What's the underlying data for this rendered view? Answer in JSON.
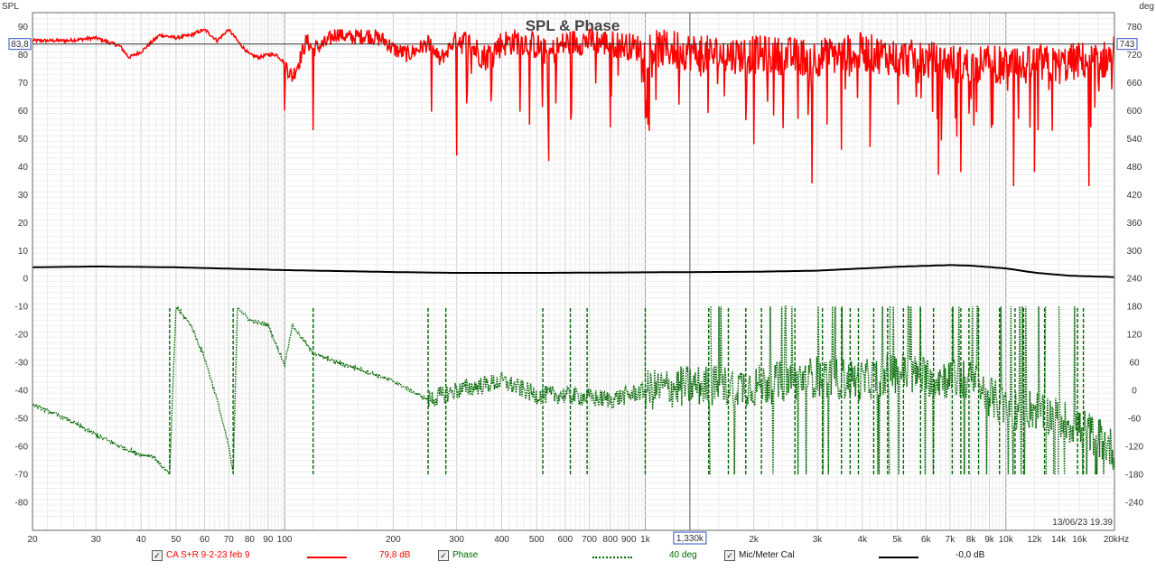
{
  "title": "SPL & Phase",
  "timestamp": "13/06/23 19.39",
  "left_axis": {
    "label": "SPL",
    "ticks": [
      "90",
      "80",
      "70",
      "60",
      "50",
      "40",
      "30",
      "20",
      "10",
      "0",
      "-10",
      "-20",
      "-30",
      "-40",
      "-50",
      "-60",
      "-70",
      "-80"
    ],
    "marker": "83,8"
  },
  "right_axis": {
    "label": "deg",
    "ticks": [
      "780",
      "720",
      "660",
      "600",
      "540",
      "480",
      "420",
      "360",
      "300",
      "240",
      "180",
      "120",
      "60",
      "0",
      "-60",
      "-120",
      "-180",
      "-240"
    ],
    "marker": "743"
  },
  "x_axis": {
    "ticks": [
      "20",
      "30",
      "40",
      "50",
      "60",
      "70",
      "80",
      "90",
      "100",
      "200",
      "300",
      "400",
      "500",
      "600",
      "700",
      "800",
      "900",
      "1k",
      "2k",
      "3k",
      "4k",
      "5k",
      "6k",
      "7k",
      "8k",
      "9k",
      "10k",
      "12k",
      "14k",
      "16k",
      "20kHz"
    ],
    "cursor": "1,330k"
  },
  "legend": [
    {
      "checked": true,
      "label": "CA S+R 9-2-23 feb 9",
      "value": "79,8 dB",
      "color": "#ff0000",
      "style": "solid"
    },
    {
      "checked": true,
      "label": "Phase",
      "value": "40 deg",
      "color": "#006600",
      "style": "dotted"
    },
    {
      "checked": true,
      "label": "Mic/Meter Cal",
      "value": "-0,0 dB",
      "color": "#000000",
      "style": "solid"
    }
  ],
  "chart_data": {
    "type": "line",
    "title": "SPL & Phase",
    "xscale": "log",
    "xlim": [
      20,
      20000
    ],
    "ylim": [
      -90,
      95
    ],
    "y2lim": [
      -300,
      810
    ],
    "grid": true,
    "series": [
      {
        "name": "CA S+R 9-2-23 feb 9",
        "axis": "left",
        "x": [
          20,
          25,
          30,
          35,
          37,
          40,
          45,
          50,
          55,
          60,
          65,
          70,
          72,
          75,
          80,
          85,
          90,
          95,
          100,
          105,
          110,
          115,
          120,
          130,
          140,
          150,
          170,
          190,
          200,
          220,
          250,
          270,
          300,
          330,
          360,
          400,
          450,
          500,
          540,
          600,
          700,
          800,
          900,
          1000,
          1200,
          1500,
          2000,
          3000,
          4000,
          5000,
          6000,
          7000,
          8000,
          9000,
          10000,
          11000,
          12000,
          14000,
          16000,
          18000,
          20000
        ],
        "y": [
          85,
          85,
          86,
          83,
          79,
          81,
          87,
          86,
          87,
          89,
          85,
          89,
          87,
          84,
          80,
          79,
          80,
          80,
          77,
          72,
          78,
          85,
          82,
          84,
          88,
          86,
          87,
          85,
          82,
          80,
          84,
          78,
          86,
          83,
          79,
          84,
          85,
          83,
          80,
          84,
          85,
          84,
          83,
          82,
          82,
          80,
          80,
          79,
          81,
          79,
          78,
          77,
          76,
          77,
          76,
          75,
          77,
          76,
          78,
          77,
          80
        ],
        "dips": [
          [
            100,
            60
          ],
          [
            120,
            53
          ],
          [
            300,
            44
          ],
          [
            540,
            42
          ],
          [
            800,
            54
          ],
          [
            1000,
            57
          ],
          [
            2000,
            48
          ],
          [
            2900,
            34
          ],
          [
            3500,
            46
          ],
          [
            4200,
            47
          ],
          [
            6500,
            37
          ],
          [
            7500,
            38
          ],
          [
            10500,
            33
          ],
          [
            12000,
            38
          ],
          [
            17000,
            33
          ]
        ]
      },
      {
        "name": "Mic/Meter Cal",
        "axis": "left",
        "x": [
          20,
          30,
          50,
          100,
          200,
          300,
          500,
          1000,
          2000,
          3000,
          5000,
          7000,
          8000,
          10000,
          12000,
          15000,
          20000
        ],
        "y": [
          4,
          4.3,
          4,
          3,
          2.3,
          2,
          2,
          2.2,
          2.4,
          2.8,
          4.2,
          4.8,
          4.6,
          3.6,
          2.1,
          1,
          0.5
        ]
      },
      {
        "name": "Phase",
        "axis": "right",
        "x": [
          20,
          25,
          30,
          35,
          40,
          43,
          48,
          50,
          55,
          60,
          65,
          70,
          72,
          74,
          80,
          90,
          100,
          105,
          120,
          140,
          170,
          200,
          250,
          300,
          400,
          500,
          600,
          800,
          1000,
          1330,
          2000,
          3000,
          4000,
          5000,
          6000,
          8000,
          10000,
          12000,
          14000,
          16000,
          18000,
          20000
        ],
        "y": [
          -30,
          -62,
          -95,
          -120,
          -138,
          -140,
          -180,
          180,
          140,
          70,
          -20,
          -120,
          -180,
          180,
          150,
          140,
          55,
          140,
          80,
          60,
          40,
          20,
          -20,
          0,
          20,
          -10,
          -10,
          -20,
          0,
          10,
          10,
          30,
          20,
          40,
          30,
          20,
          -40,
          -40,
          -60,
          -80,
          -100,
          -130
        ]
      }
    ],
    "legend_values": [
      "79,8 dB",
      "40 deg",
      "-0,0 dB"
    ]
  }
}
